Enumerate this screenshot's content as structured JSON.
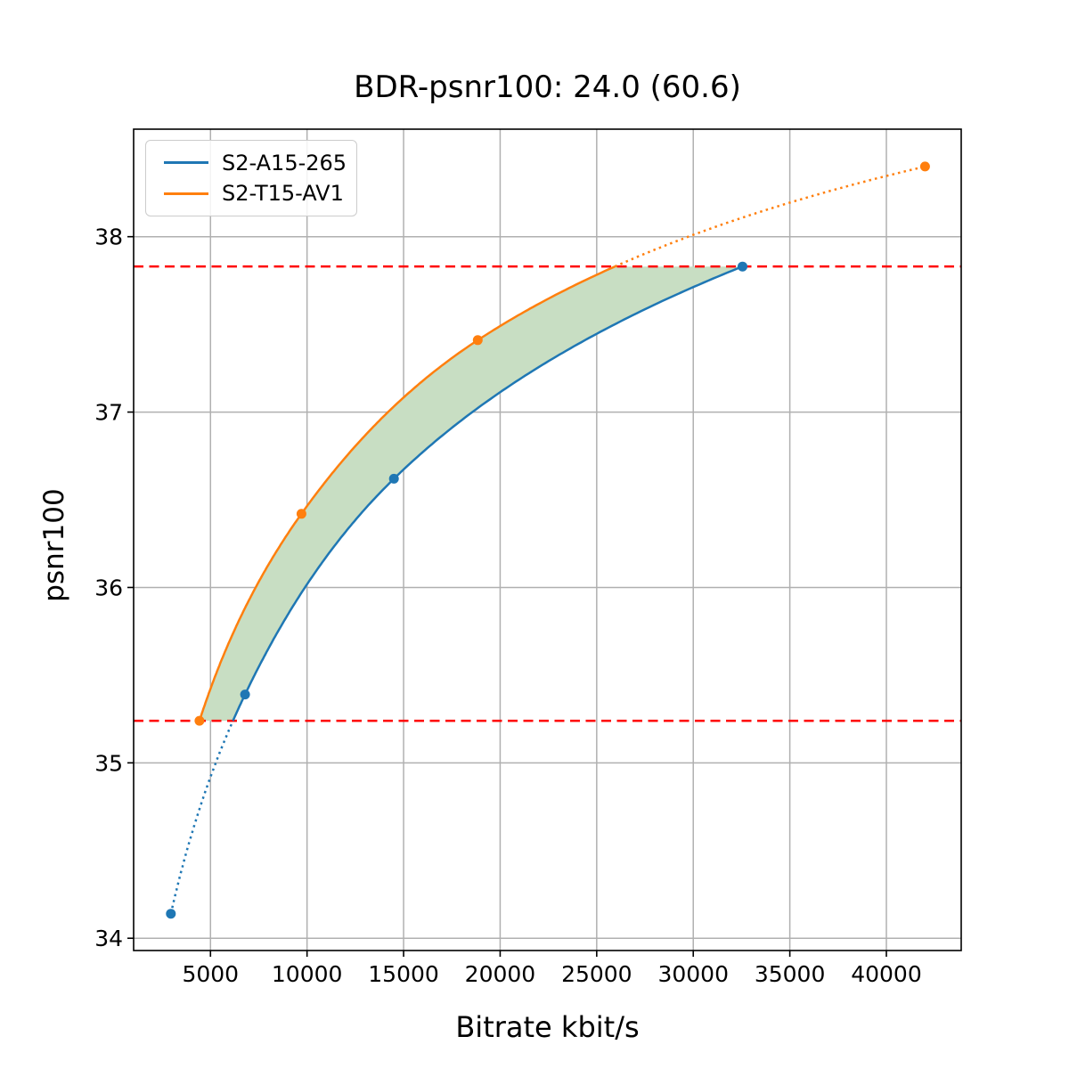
{
  "chart_data": {
    "type": "line",
    "title": "BDR-psnr100: 24.0 (60.6)",
    "xlabel": "Bitrate kbit/s",
    "ylabel": "psnr100",
    "xlim": [
      1020,
      43875
    ],
    "ylim": [
      33.93,
      38.613
    ],
    "x_ticks": [
      5000,
      10000,
      15000,
      20000,
      25000,
      30000,
      35000,
      40000
    ],
    "y_ticks": [
      34,
      35,
      36,
      37,
      38
    ],
    "grid": true,
    "grid_color": "#b0b0b0",
    "legend_position": "upper left",
    "series": [
      {
        "name": "S2-A15-265",
        "color": "#1f77b4",
        "points": [
          [
            2950,
            34.14
          ],
          [
            6790,
            35.39
          ],
          [
            14500,
            36.62
          ],
          [
            32550,
            37.83
          ]
        ]
      },
      {
        "name": "S2-T15-AV1",
        "color": "#ff7f0e",
        "points": [
          [
            4430,
            35.24
          ],
          [
            9710,
            36.42
          ],
          [
            18840,
            37.41
          ],
          [
            42000,
            38.4
          ]
        ]
      }
    ],
    "hlines": {
      "values": [
        35.24,
        37.83
      ],
      "color": "#ff0000",
      "style": "dashed"
    },
    "fill_between": {
      "color": "#c8dec3",
      "y_range": [
        35.24,
        37.83
      ]
    },
    "annotations": {
      "bd_rate_percent": "24.0",
      "bd_rate_alt_percent": "60.6"
    }
  }
}
